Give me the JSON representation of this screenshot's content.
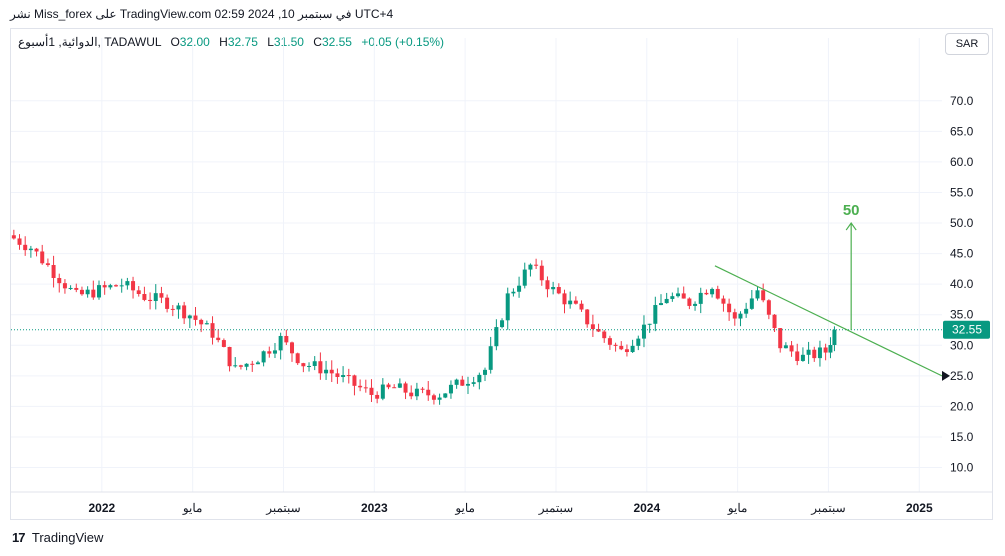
{
  "caption": "نشر Miss_forex على TradingView.com 02:59 2024 ,10 في سبتمبر UTC+4",
  "legend": {
    "symbol": "الدوائية, 1أسبوع, TADAWUL",
    "open_label": "O",
    "open": "32.00",
    "high_label": "H",
    "high": "32.75",
    "low_label": "L",
    "low": "31.50",
    "close_label": "C",
    "close": "32.55",
    "change": "+0.05 (+0.15%)"
  },
  "currency_button": "SAR",
  "footer": {
    "logo_glyph": "17",
    "brand": "TradingView"
  },
  "colors": {
    "up": "#089981",
    "down": "#f23645",
    "trend": "#4caf50",
    "grid": "#f0f3fa",
    "axis_text": "#131722"
  },
  "chart_data": {
    "type": "candlestick",
    "title": "",
    "y_ticks": [
      "70.0",
      "65.0",
      "60.0",
      "55.0",
      "50.0",
      "45.0",
      "40.0",
      "35.0",
      "30.0",
      "25.0",
      "20.0",
      "15.0",
      "10.0"
    ],
    "ylim": [
      6.0,
      77.0
    ],
    "x_ticks": [
      {
        "label": "2022",
        "date": "2022-01",
        "bold": true
      },
      {
        "label": "مايو",
        "date": "2022-05",
        "bold": false
      },
      {
        "label": "سبتمبر",
        "date": "2022-09",
        "bold": false
      },
      {
        "label": "2023",
        "date": "2023-01",
        "bold": true
      },
      {
        "label": "مايو",
        "date": "2023-05",
        "bold": false
      },
      {
        "label": "سبتمبر",
        "date": "2023-09",
        "bold": false
      },
      {
        "label": "2024",
        "date": "2024-01",
        "bold": true
      },
      {
        "label": "مايو",
        "date": "2024-05",
        "bold": false
      },
      {
        "label": "سبتمبر",
        "date": "2024-09",
        "bold": false
      },
      {
        "label": "2025",
        "date": "2025-01",
        "bold": true
      }
    ],
    "date_range": [
      "2021-09",
      "2025-02"
    ],
    "last_price": "32.55",
    "current_price_line": 32.55,
    "candles_approx": [
      {
        "d": "2021-09",
        "o": 48,
        "c": 46
      },
      {
        "d": "2021-10",
        "o": 46,
        "c": 42
      },
      {
        "d": "2021-11",
        "o": 42,
        "c": 38
      },
      {
        "d": "2021-12",
        "o": 38,
        "c": 39
      },
      {
        "d": "2022-01",
        "o": 39,
        "c": 40
      },
      {
        "d": "2022-02",
        "o": 40,
        "c": 38
      },
      {
        "d": "2022-03",
        "o": 38,
        "c": 37
      },
      {
        "d": "2022-04",
        "o": 37,
        "c": 35
      },
      {
        "d": "2022-05",
        "o": 35,
        "c": 32
      },
      {
        "d": "2022-06",
        "o": 32,
        "c": 26
      },
      {
        "d": "2022-07",
        "o": 26,
        "c": 28
      },
      {
        "d": "2022-08",
        "o": 28,
        "c": 31
      },
      {
        "d": "2022-09",
        "o": 31,
        "c": 27
      },
      {
        "d": "2022-10",
        "o": 27,
        "c": 26
      },
      {
        "d": "2022-11",
        "o": 26,
        "c": 24
      },
      {
        "d": "2022-12",
        "o": 24,
        "c": 22
      },
      {
        "d": "2023-01",
        "o": 22,
        "c": 23
      },
      {
        "d": "2023-02",
        "o": 23,
        "c": 22
      },
      {
        "d": "2023-03",
        "o": 22,
        "c": 22
      },
      {
        "d": "2023-04",
        "o": 22,
        "c": 24
      },
      {
        "d": "2023-05",
        "o": 24,
        "c": 26
      },
      {
        "d": "2023-06",
        "o": 26,
        "c": 38
      },
      {
        "d": "2023-07",
        "o": 38,
        "c": 43
      },
      {
        "d": "2023-08",
        "o": 43,
        "c": 39
      },
      {
        "d": "2023-09",
        "o": 39,
        "c": 36
      },
      {
        "d": "2023-10",
        "o": 36,
        "c": 32
      },
      {
        "d": "2023-11",
        "o": 32,
        "c": 29
      },
      {
        "d": "2023-12",
        "o": 29,
        "c": 33
      },
      {
        "d": "2024-01",
        "o": 33,
        "c": 38
      },
      {
        "d": "2024-02",
        "o": 38,
        "c": 37
      },
      {
        "d": "2024-03",
        "o": 37,
        "c": 40
      },
      {
        "d": "2024-04",
        "o": 40,
        "c": 34
      },
      {
        "d": "2024-05",
        "o": 34,
        "c": 39
      },
      {
        "d": "2024-06",
        "o": 39,
        "c": 30
      },
      {
        "d": "2024-07",
        "o": 30,
        "c": 28
      },
      {
        "d": "2024-08",
        "o": 28,
        "c": 29
      },
      {
        "d": "2024-09",
        "o": 29,
        "c": 32.55
      }
    ],
    "trendline": {
      "from": {
        "d": "2024-04",
        "v": 43
      },
      "to": {
        "d": "2025-02",
        "v": 25
      }
    },
    "target_arrow": {
      "label": "50",
      "d": "2024-10",
      "from": 32.5,
      "to": 50
    }
  }
}
